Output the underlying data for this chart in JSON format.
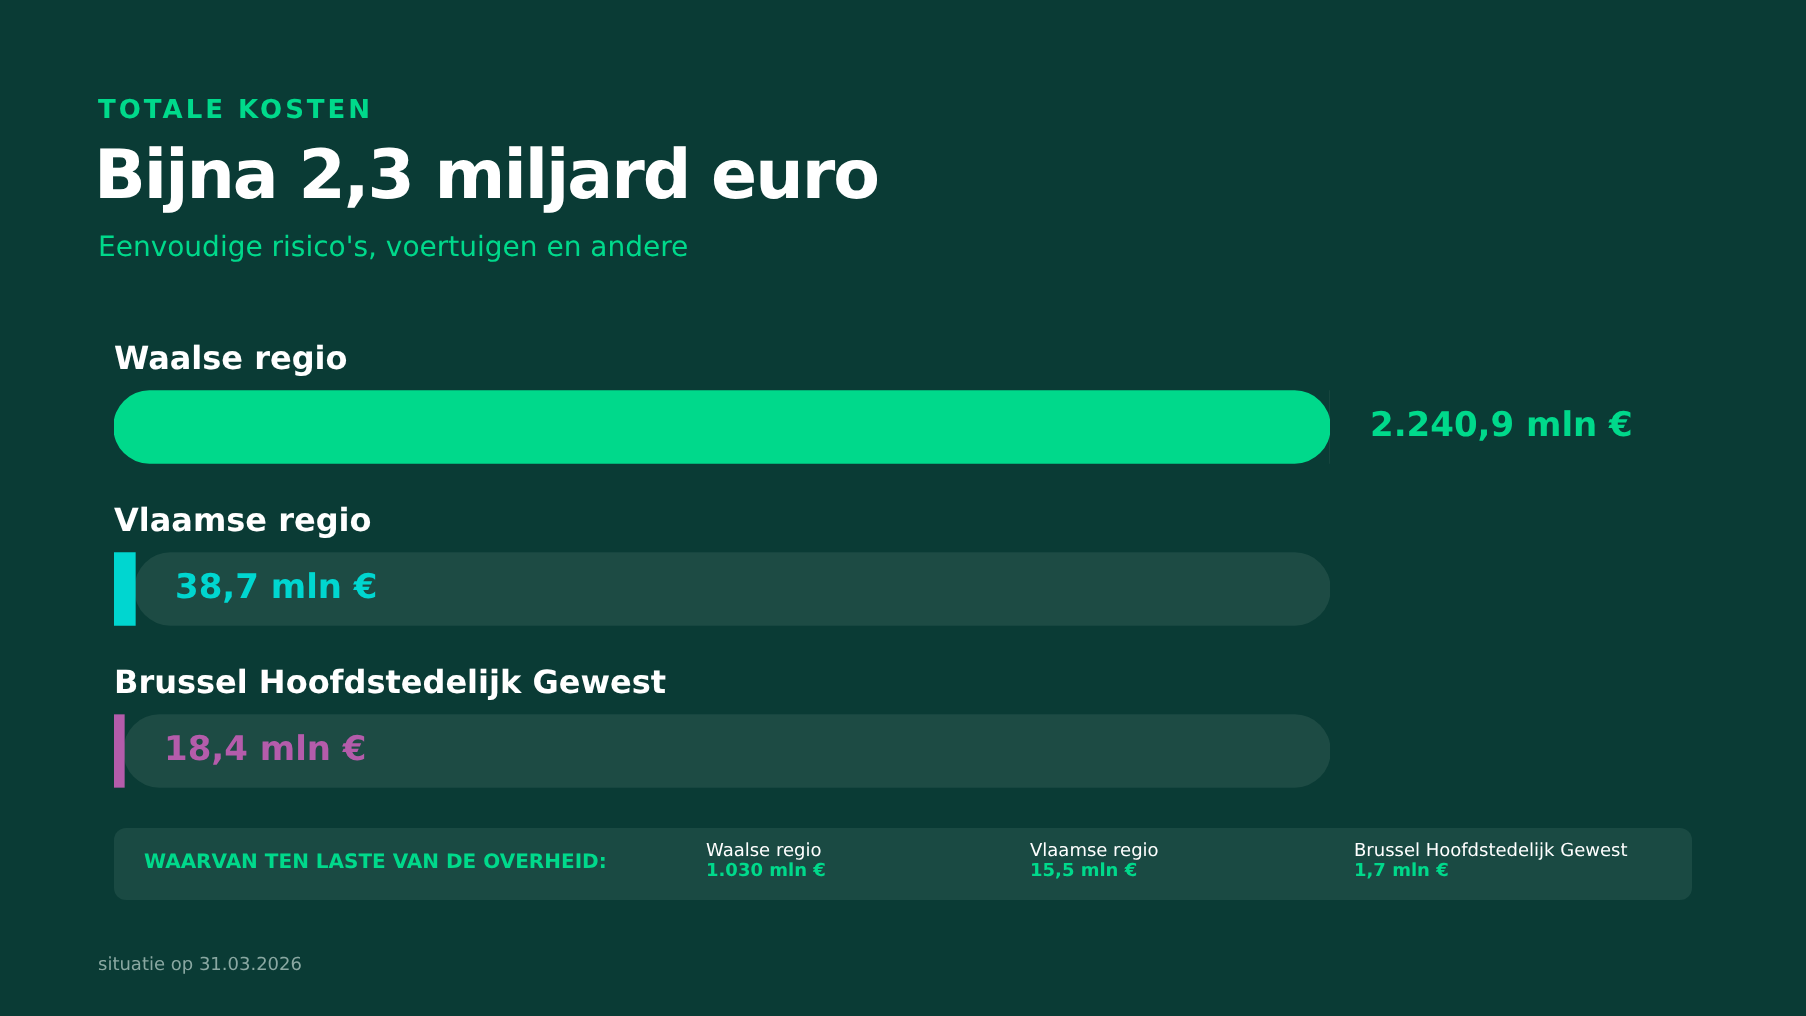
{
  "chart_data": {
    "type": "bar",
    "orientation": "horizontal",
    "stacked": true,
    "title": "Bijna 2,3 miljard euro",
    "subtitle": "Eenvoudige risico's, voertuigen en andere",
    "categories": [
      "Waalse regio",
      "Vlaamse regio",
      "Brussel Hoofdstedelijk Gewest"
    ],
    "series": [
      {
        "colors": [
          "#00d98b",
          "#00d6d0",
          "#b45cab"
        ],
        "values": [
          2240.9,
          38.7,
          18.4
        ],
        "value_labels": [
          "2.240,9 mln €",
          "38,7 mln €",
          "18,4 mln €"
        ]
      },
      {
        "color": "#1d4b44",
        "values": [
          0,
          2202.2,
          2222.5
        ]
      }
    ],
    "annotations": [
      "TOTALE KOSTEN",
      "WAARVAN TEN LASTE VAN DE OVERHEID:",
      "Waalse regio",
      "1.030 mln €",
      "Vlaamse regio",
      "15,5 mln €",
      "Brussel Hoofdstedelijk Gewest",
      "1,7 mln €",
      "situatie op 31.03.2026"
    ],
    "legend": false
  }
}
